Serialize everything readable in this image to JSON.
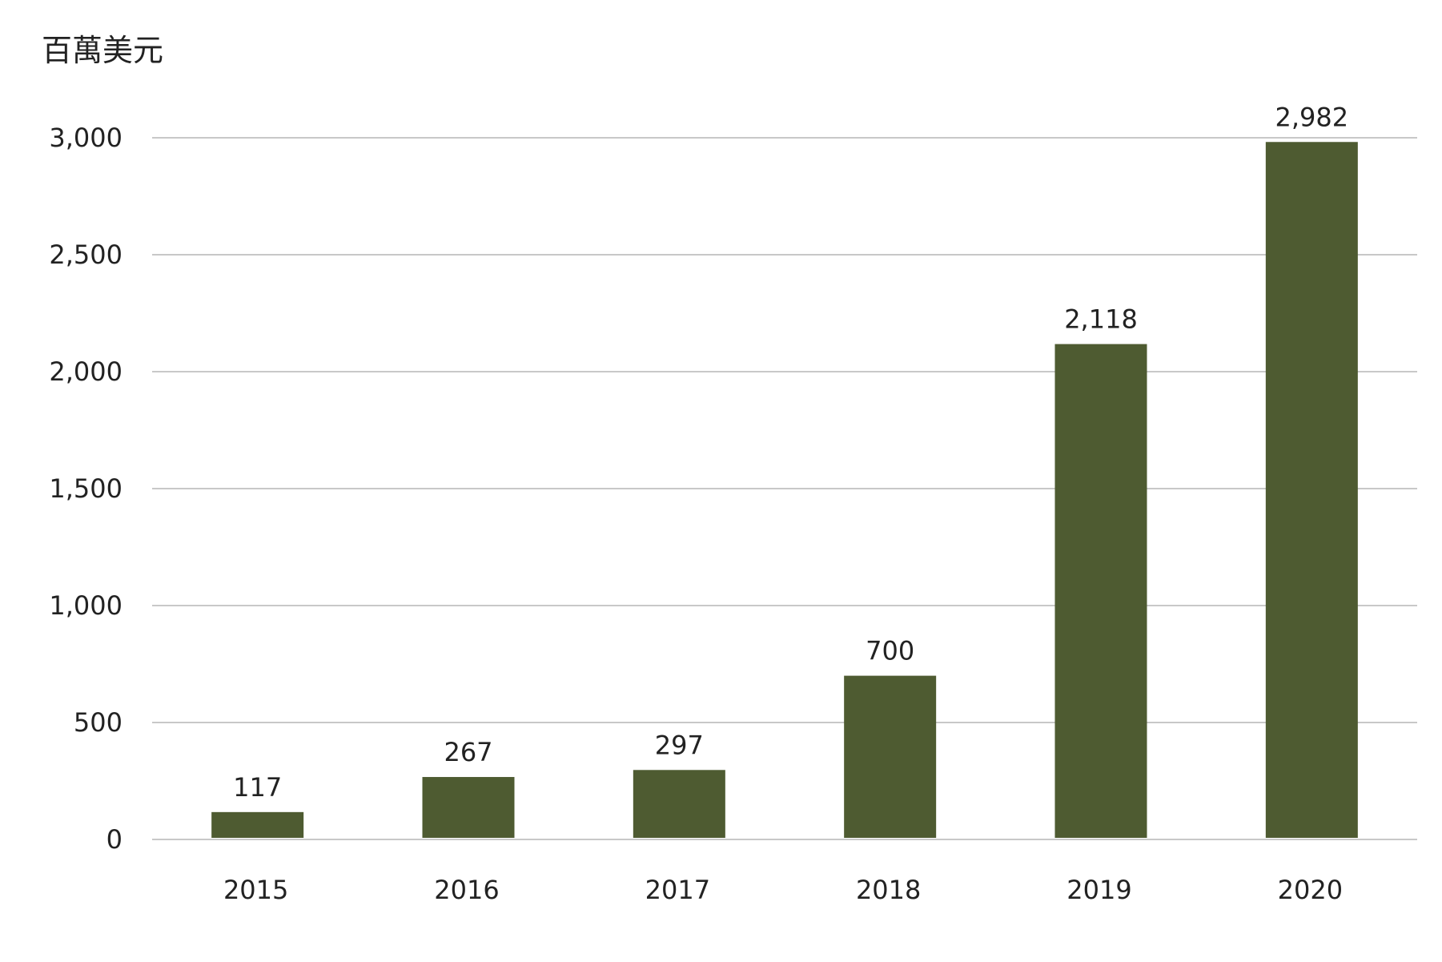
{
  "chart_data": {
    "type": "bar",
    "ylabel": "百萬美元",
    "categories": [
      "2015",
      "2016",
      "2017",
      "2018",
      "2019",
      "2020"
    ],
    "values": [
      117,
      267,
      297,
      700,
      2118,
      2982
    ],
    "data_labels": [
      "117",
      "267",
      "297",
      "700",
      "2,118",
      "2,982"
    ],
    "yticks": [
      0,
      500,
      1000,
      1500,
      2000,
      2500,
      3000
    ],
    "ytick_labels": [
      "0",
      "500",
      "1,000",
      "1,500",
      "2,000",
      "2,500",
      "3,000"
    ],
    "ylim": [
      0,
      3000
    ],
    "grid": true,
    "legend": "none",
    "bar_color": "#4e5b31",
    "grid_color": "#a6a6a6",
    "text_color": "#222222"
  }
}
